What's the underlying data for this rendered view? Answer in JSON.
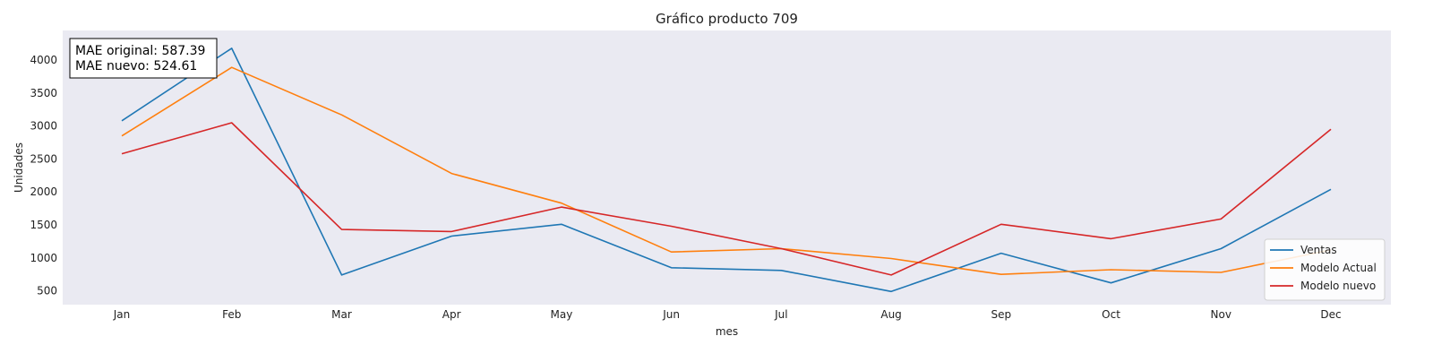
{
  "chart_data": {
    "type": "line",
    "title": "Gráfico producto 709",
    "xlabel": "mes",
    "ylabel": "Unidades",
    "categories": [
      "Jan",
      "Feb",
      "Mar",
      "Apr",
      "May",
      "Jun",
      "Jul",
      "Aug",
      "Sep",
      "Oct",
      "Nov",
      "Dec"
    ],
    "yticks": [
      500,
      1000,
      1500,
      2000,
      2500,
      3000,
      3500,
      4000
    ],
    "ylim": [
      290,
      4450
    ],
    "grid": false,
    "legend_position": "lower-right",
    "series": [
      {
        "name": "Ventas",
        "color": "#1f77b4",
        "values": [
          3080,
          4180,
          740,
          1330,
          1510,
          850,
          810,
          490,
          1070,
          620,
          1140,
          2040
        ]
      },
      {
        "name": "Modelo Actual",
        "color": "#ff7f0e",
        "values": [
          2850,
          3890,
          3170,
          2280,
          1830,
          1090,
          1140,
          990,
          750,
          820,
          780,
          1120
        ]
      },
      {
        "name": "Modelo nuevo",
        "color": "#d62728",
        "values": [
          2580,
          3050,
          1430,
          1400,
          1770,
          1480,
          1140,
          740,
          1510,
          1290,
          1590,
          2950
        ]
      }
    ],
    "annotation": {
      "line1": "MAE original: 587.39",
      "line2": "MAE nuevo: 524.61"
    },
    "colors": {
      "plot_background": "#eaeaf2",
      "text": "#222222"
    }
  }
}
